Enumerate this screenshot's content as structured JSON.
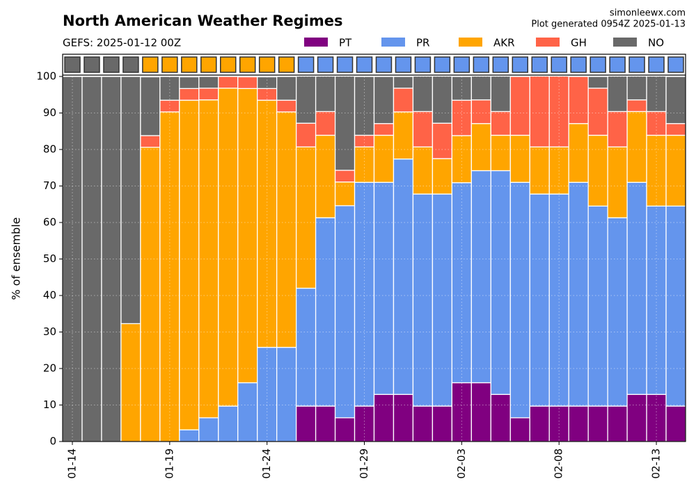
{
  "chart_data": {
    "type": "stacked_bar",
    "title": "North American Weather Regimes",
    "subtitle": "GEFS: 2025-01-12 00Z",
    "source": "simonleewx.com",
    "generated": "Plot generated 0954Z 2025-01-13",
    "y_label": "% of ensemble",
    "categories": [
      "01-14",
      null,
      null,
      null,
      null,
      "01-19",
      null,
      null,
      null,
      null,
      "01-24",
      null,
      null,
      null,
      null,
      "01-29",
      null,
      null,
      null,
      null,
      "02-03",
      null,
      null,
      null,
      null,
      "02-08",
      null,
      null,
      null,
      null,
      "02-13",
      null
    ],
    "series": [
      {
        "name": "PT",
        "color": "#800080",
        "values": [
          0,
          0,
          0,
          0,
          0,
          0,
          0,
          0,
          0,
          0,
          0,
          0,
          9.7,
          9.7,
          6.5,
          9.7,
          12.9,
          12.9,
          9.7,
          9.7,
          16.1,
          16.1,
          12.9,
          6.5,
          9.7,
          9.7,
          9.7,
          9.7,
          9.7,
          12.9,
          12.9,
          9.7
        ]
      },
      {
        "name": "PR",
        "color": "#6495ed",
        "values": [
          0,
          0,
          0,
          0,
          0,
          0,
          3.2,
          6.5,
          9.7,
          16.1,
          25.8,
          25.8,
          32.3,
          51.6,
          58.1,
          61.3,
          58.1,
          64.5,
          58.1,
          58.1,
          54.8,
          58.1,
          61.3,
          64.5,
          58.1,
          58.1,
          61.3,
          54.8,
          51.6,
          58.1,
          51.6,
          54.8
        ]
      },
      {
        "name": "AKR",
        "color": "#ffa500",
        "values": [
          0,
          0,
          0,
          32.3,
          80.6,
          90.3,
          90.3,
          87.1,
          87.1,
          80.6,
          67.7,
          64.5,
          38.7,
          22.6,
          6.5,
          9.7,
          12.9,
          12.9,
          12.9,
          9.7,
          12.9,
          12.9,
          9.7,
          12.9,
          12.9,
          12.9,
          16.1,
          19.4,
          19.4,
          19.4,
          19.4,
          19.4
        ]
      },
      {
        "name": "GH",
        "color": "#ff6347",
        "values": [
          0,
          0,
          0,
          0,
          3.2,
          3.2,
          3.2,
          3.2,
          3.2,
          3.2,
          3.2,
          3.2,
          6.5,
          6.5,
          3.2,
          3.2,
          3.2,
          6.5,
          9.7,
          9.7,
          9.7,
          6.5,
          6.5,
          16.1,
          19.4,
          19.4,
          12.9,
          12.9,
          9.7,
          3.2,
          6.5,
          3.2
        ]
      },
      {
        "name": "NO",
        "color": "#696969",
        "values": [
          100,
          100,
          100,
          67.7,
          16.1,
          6.5,
          3.2,
          3.2,
          0,
          0,
          3.2,
          6.5,
          12.9,
          9.7,
          25.8,
          16.1,
          12.9,
          3.2,
          9.7,
          12.9,
          6.5,
          6.5,
          9.7,
          0,
          0,
          0,
          0,
          3.2,
          9.7,
          6.5,
          9.7,
          12.9
        ]
      }
    ],
    "regime_strip": [
      "NO",
      "NO",
      "NO",
      "NO",
      "AKR",
      "AKR",
      "AKR",
      "AKR",
      "AKR",
      "AKR",
      "AKR",
      "AKR",
      "PR",
      "PR",
      "PR",
      "PR",
      "PR",
      "PR",
      "PR",
      "PR",
      "PR",
      "PR",
      "PR",
      "PR",
      "PR",
      "PR",
      "PR",
      "PR",
      "PR",
      "PR",
      "PR",
      "PR"
    ],
    "ylim": [
      0,
      100
    ],
    "yticks": [
      0,
      10,
      20,
      30,
      40,
      50,
      60,
      70,
      80,
      90,
      100
    ],
    "grid": true
  }
}
